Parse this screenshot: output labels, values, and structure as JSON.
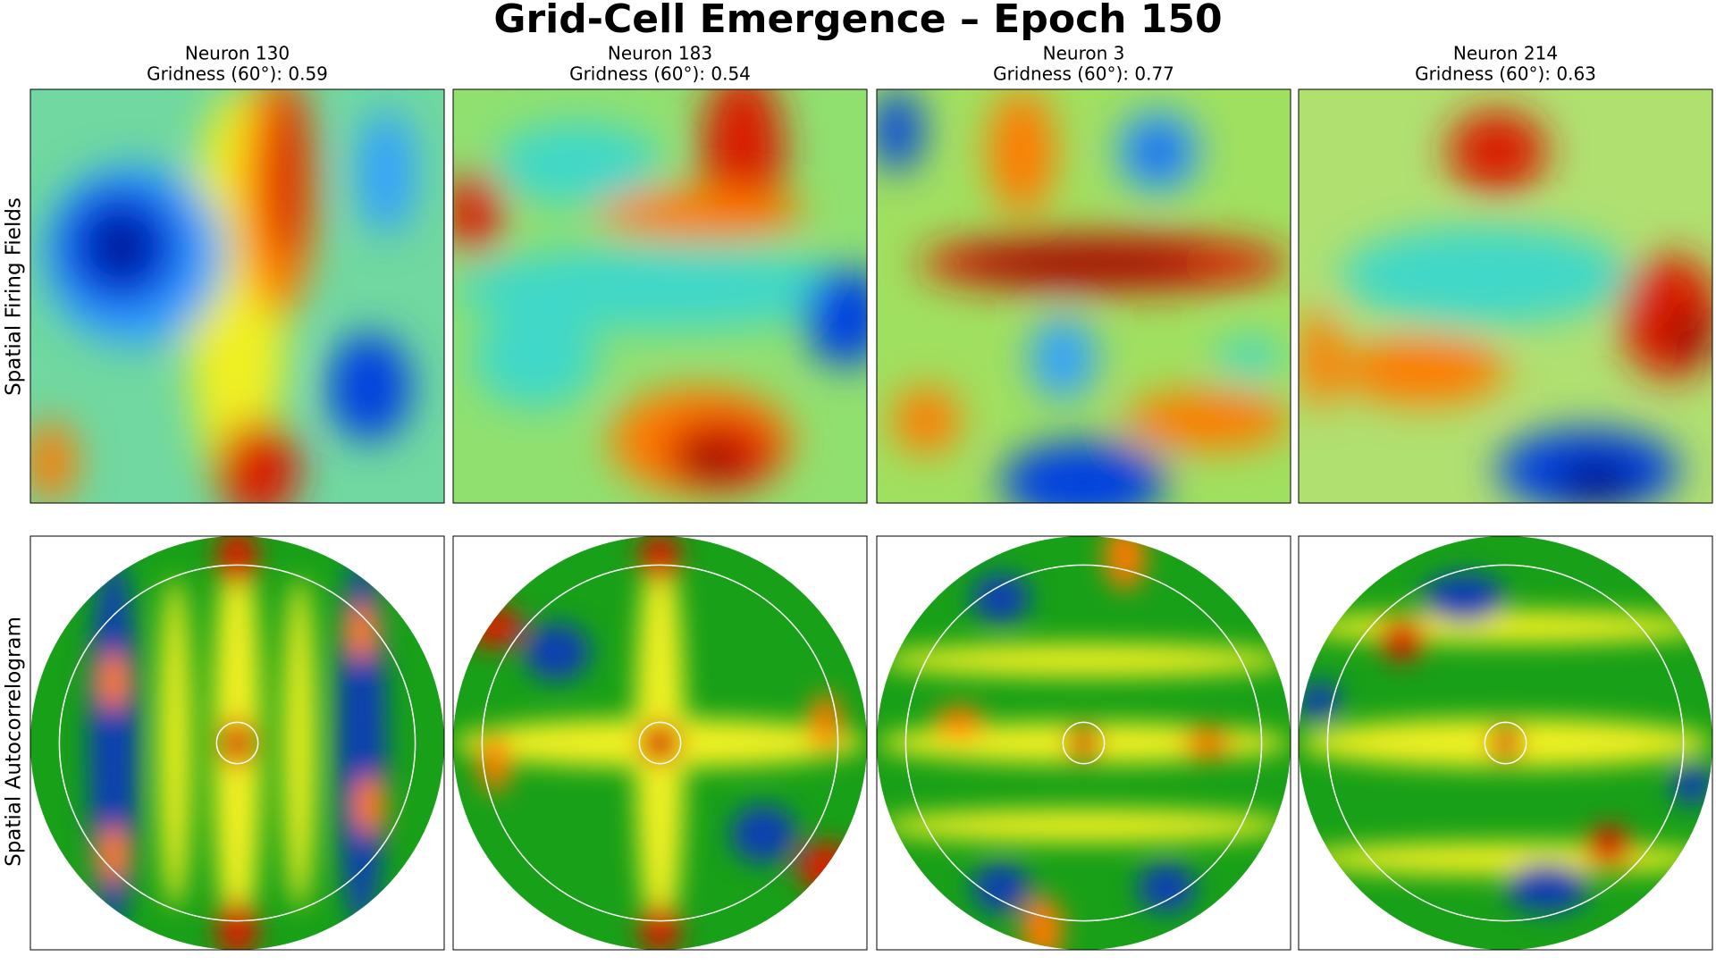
{
  "title": "Grid-Cell Emergence – Epoch 150",
  "row_labels": [
    "Spatial Firing Fields",
    "Spatial Autocorrelogram"
  ],
  "panels": [
    {
      "title": "Neuron 130",
      "subtitle": "Gridness (60°): 0.59"
    },
    {
      "title": "Neuron 183",
      "subtitle": "Gridness (60°): 0.54"
    },
    {
      "title": "Neuron 3",
      "subtitle": "Gridness (60°): 0.77"
    },
    {
      "title": "Neuron 214",
      "subtitle": "Gridness (60°): 0.63"
    }
  ]
}
